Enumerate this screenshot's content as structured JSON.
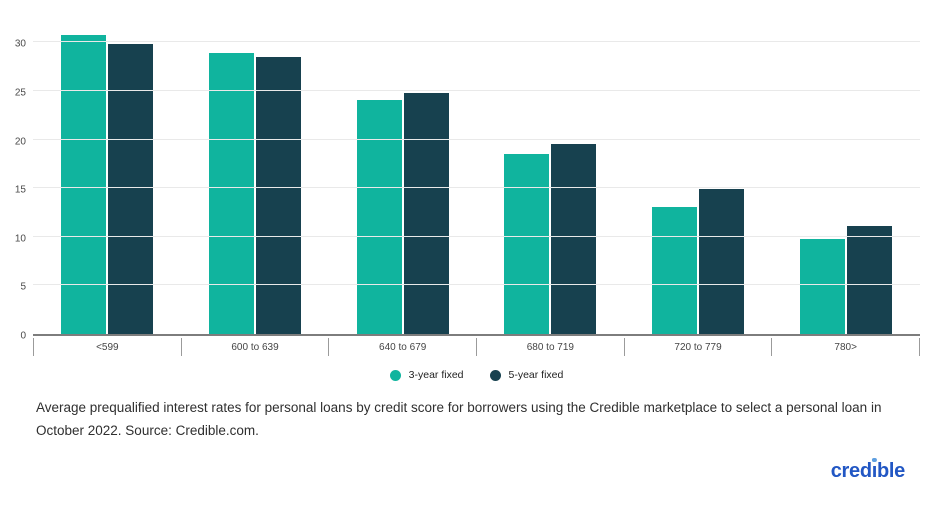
{
  "chart_data": {
    "type": "bar",
    "title": "",
    "xlabel": "",
    "ylabel": "",
    "categories": [
      "<599",
      "600 to 639",
      "640 to 679",
      "680 to 719",
      "720 to 779",
      "780>"
    ],
    "series": [
      {
        "name": "3-year fixed",
        "color": "#10b49e",
        "values": [
          30.8,
          28.9,
          24.1,
          18.5,
          13.1,
          9.8
        ]
      },
      {
        "name": "5-year fixed",
        "color": "#17414f",
        "values": [
          29.8,
          28.5,
          24.8,
          19.5,
          14.9,
          11.1
        ]
      }
    ],
    "ylim": [
      0,
      32.5
    ],
    "yticks": [
      0,
      5,
      10,
      15,
      20,
      25,
      30
    ],
    "grid": true,
    "legend_position": "bottom-center",
    "gridline_color": "#e9e9e9",
    "axis_color": "#7d7d7d"
  },
  "caption": {
    "text": "Average prequalified interest rates for personal loans by credit score for borrowers using the Credible marketplace to select a personal loan in October 2022. Source: Credible.com."
  },
  "logo": {
    "text": "credible",
    "color": "#2257c4",
    "i_dot_color": "#5f9fe0"
  }
}
